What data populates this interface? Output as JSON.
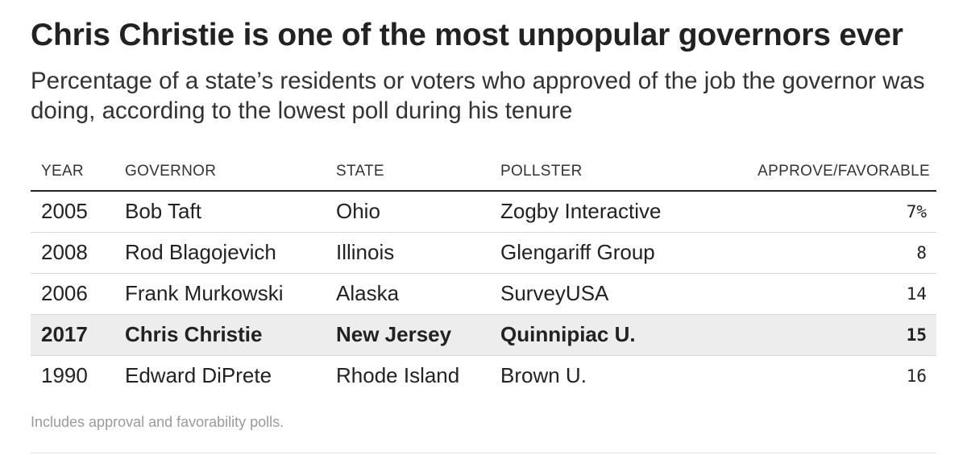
{
  "title": "Chris Christie is one of the most unpopular governors ever",
  "subtitle": "Percentage of a state’s residents or voters who approved of the job the governor was doing, according to the lowest poll during his tenure",
  "columns": {
    "year": "YEAR",
    "governor": "GOVERNOR",
    "state": "STATE",
    "pollster": "POLLSTER",
    "approve": "APPROVE/FAVORABLE"
  },
  "rows": [
    {
      "year": "2005",
      "governor": "Bob Taft",
      "state": "Ohio",
      "pollster": "Zogby Interactive",
      "approve": "7%"
    },
    {
      "year": "2008",
      "governor": "Rod Blagojevich",
      "state": "Illinois",
      "pollster": "Glengariff Group",
      "approve": "8"
    },
    {
      "year": "2006",
      "governor": "Frank Murkowski",
      "state": "Alaska",
      "pollster": "SurveyUSA",
      "approve": "14"
    },
    {
      "year": "2017",
      "governor": "Chris Christie",
      "state": "New Jersey",
      "pollster": "Quinnipiac U.",
      "approve": "15"
    },
    {
      "year": "1990",
      "governor": "Edward DiPrete",
      "state": "Rhode Island",
      "pollster": "Brown U.",
      "approve": "16"
    }
  ],
  "note": "Includes approval and favorability polls.",
  "chart_data": {
    "type": "table",
    "title": "Chris Christie is one of the most unpopular governors ever",
    "subtitle": "Percentage of a state’s residents or voters who approved of the job the governor was doing, according to the lowest poll during his tenure",
    "columns": [
      "YEAR",
      "GOVERNOR",
      "STATE",
      "POLLSTER",
      "APPROVE/FAVORABLE"
    ],
    "rows": [
      [
        "2005",
        "Bob Taft",
        "Ohio",
        "Zogby Interactive",
        7
      ],
      [
        "2008",
        "Rod Blagojevich",
        "Illinois",
        "Glengariff Group",
        8
      ],
      [
        "2006",
        "Frank Murkowski",
        "Alaska",
        "SurveyUSA",
        14
      ],
      [
        "2017",
        "Chris Christie",
        "New Jersey",
        "Quinnipiac U.",
        15
      ],
      [
        "1990",
        "Edward DiPrete",
        "Rhode Island",
        "Brown U.",
        16
      ]
    ],
    "highlighted_row": 3,
    "note": "Includes approval and favorability polls."
  },
  "colors": {
    "text": "#222222",
    "highlight_row": "#ededed",
    "note": "#9a9a9a",
    "rule": "#d9d9d9"
  }
}
